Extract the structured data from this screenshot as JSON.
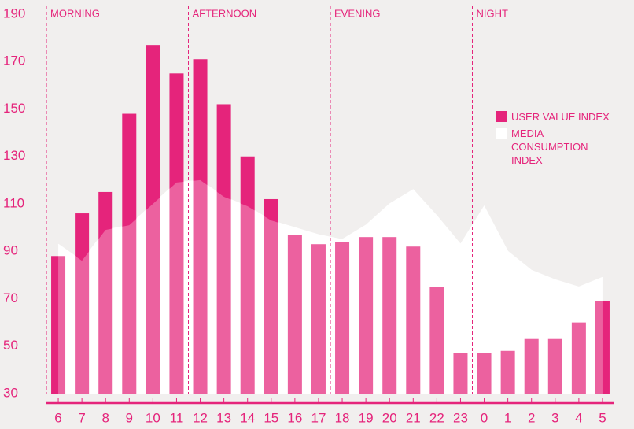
{
  "chart_data": {
    "type": "bar-area",
    "categories": [
      "6",
      "7",
      "8",
      "9",
      "10",
      "11",
      "12",
      "13",
      "14",
      "15",
      "16",
      "17",
      "18",
      "19",
      "20",
      "21",
      "22",
      "23",
      "0",
      "1",
      "2",
      "3",
      "4",
      "5"
    ],
    "series": [
      {
        "name": "USER VALUE INDEX",
        "color": "#e5247b",
        "type": "bar",
        "values": [
          88,
          106,
          115,
          148,
          177,
          165,
          171,
          152,
          130,
          112,
          97,
          93,
          94,
          96,
          96,
          92,
          75,
          47,
          47,
          48,
          53,
          53,
          60,
          69
        ]
      },
      {
        "name": "MEDIA CONSUMPTION INDEX",
        "color": "#ffffff",
        "type": "area",
        "values": [
          93,
          86,
          99,
          101,
          110,
          119,
          120,
          113,
          109,
          103,
          100,
          97,
          95,
          101,
          110,
          116,
          105,
          93,
          109,
          90,
          82,
          78,
          75,
          79
        ]
      }
    ],
    "sections": [
      {
        "label": "MORNING",
        "start": "6"
      },
      {
        "label": "AFTERNOON",
        "start": "12"
      },
      {
        "label": "EVENING",
        "start": "18"
      },
      {
        "label": "NIGHT",
        "start": "0"
      }
    ],
    "ylim": [
      30,
      190
    ],
    "yticks": [
      30,
      50,
      70,
      90,
      110,
      130,
      150,
      170,
      190
    ],
    "grid": false,
    "legend": "right"
  }
}
